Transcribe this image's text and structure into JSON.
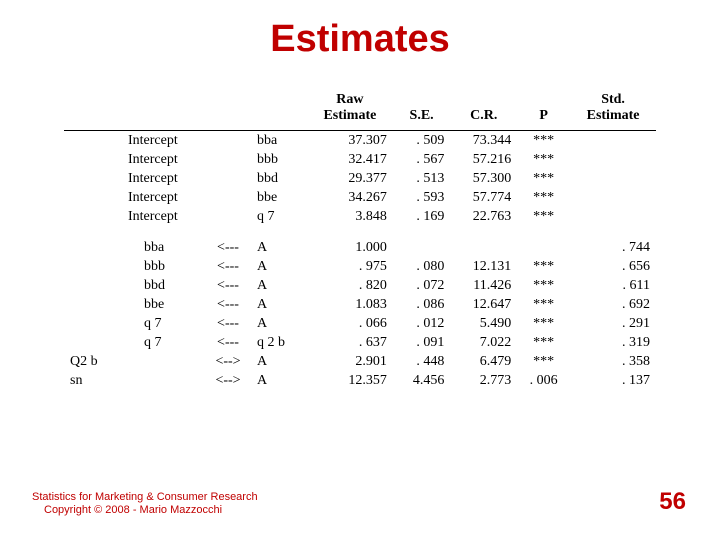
{
  "title": "Estimates",
  "colors": {
    "accent": "#c00000",
    "text": "#000000",
    "background": "#ffffff",
    "rule": "#000000"
  },
  "typography": {
    "title_family": "Comic Sans MS",
    "title_size_pt": 38,
    "body_family": "Times New Roman",
    "body_size_pt": 14,
    "footer_size_pt": 11,
    "page_num_size_pt": 24
  },
  "table": {
    "headers": {
      "c1": "",
      "c2": "",
      "c3": "",
      "raw": "Raw\nEstimate",
      "se": "S.E.",
      "cr": "C.R.",
      "p": "P",
      "std": "Std.\nEstimate"
    },
    "section1": [
      {
        "l1": "Intercept",
        "arrow": "",
        "l2": "bba",
        "raw": "37.307",
        "se": ". 509",
        "cr": "73.344",
        "p": "***",
        "std": ""
      },
      {
        "l1": "Intercept",
        "arrow": "",
        "l2": "bbb",
        "raw": "32.417",
        "se": ". 567",
        "cr": "57.216",
        "p": "***",
        "std": ""
      },
      {
        "l1": "Intercept",
        "arrow": "",
        "l2": "bbd",
        "raw": "29.377",
        "se": ". 513",
        "cr": "57.300",
        "p": "***",
        "std": ""
      },
      {
        "l1": "Intercept",
        "arrow": "",
        "l2": "bbe",
        "raw": "34.267",
        "se": ". 593",
        "cr": "57.774",
        "p": "***",
        "std": ""
      },
      {
        "l1": "Intercept",
        "arrow": "",
        "l2": "q 7",
        "raw": "3.848",
        "se": ". 169",
        "cr": "22.763",
        "p": "***",
        "std": ""
      }
    ],
    "section2": [
      {
        "l1": "bba",
        "arrow": "<---",
        "l2": "A",
        "raw": "1.000",
        "se": "",
        "cr": "",
        "p": "",
        "std": ". 744"
      },
      {
        "l1": "bbb",
        "arrow": "<---",
        "l2": "A",
        "raw": ". 975",
        "se": ". 080",
        "cr": "12.131",
        "p": "***",
        "std": ". 656"
      },
      {
        "l1": "bbd",
        "arrow": "<---",
        "l2": "A",
        "raw": ". 820",
        "se": ". 072",
        "cr": "11.426",
        "p": "***",
        "std": ". 611"
      },
      {
        "l1": "bbe",
        "arrow": "<---",
        "l2": "A",
        "raw": "1.083",
        "se": ". 086",
        "cr": "12.647",
        "p": "***",
        "std": ". 692"
      },
      {
        "l1": "q 7",
        "arrow": "<---",
        "l2": "A",
        "raw": ". 066",
        "se": ". 012",
        "cr": "5.490",
        "p": "***",
        "std": ". 291"
      },
      {
        "l1": "q 7",
        "arrow": "<---",
        "l2": "q 2 b",
        "raw": ". 637",
        "se": ". 091",
        "cr": "7.022",
        "p": "***",
        "std": ". 319"
      }
    ],
    "section3": [
      {
        "l0": "Q2 b",
        "l1": "",
        "arrow": "<-->",
        "l2": "A",
        "raw": "2.901",
        "se": ". 448",
        "cr": "6.479",
        "p": "***",
        "std": ". 358"
      },
      {
        "l0": "sn",
        "l1": "",
        "arrow": "<-->",
        "l2": "A",
        "raw": "12.357",
        "se": "4.456",
        "cr": "2.773",
        "p": ". 006",
        "std": ". 137"
      }
    ]
  },
  "footer": {
    "line1": "Statistics for Marketing & Consumer Research",
    "line2": "Copyright © 2008 - Mario Mazzocchi",
    "page_number": "56"
  }
}
